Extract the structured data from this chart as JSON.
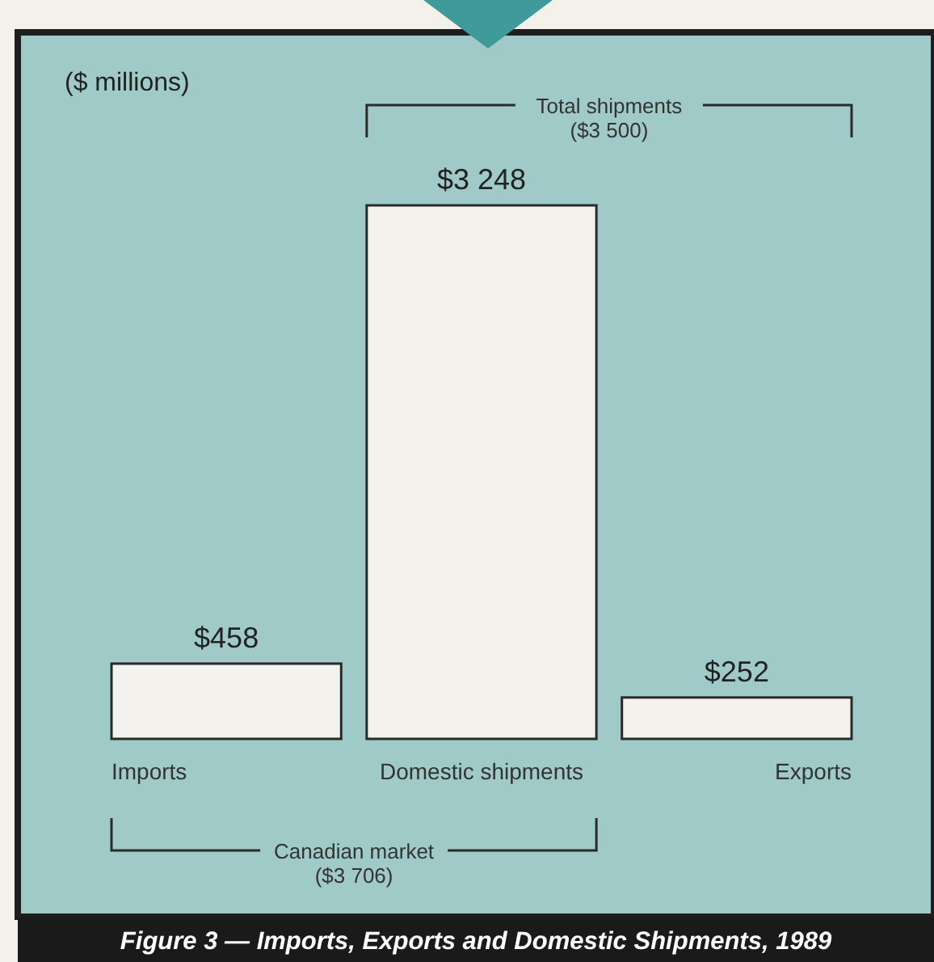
{
  "chart_data": {
    "type": "bar",
    "title": "Figure 3 — Imports, Exports and Domestic Shipments, 1989",
    "ylabel": "($ millions)",
    "categories": [
      "Imports",
      "Domestic shipments",
      "Exports"
    ],
    "values": [
      458,
      3248,
      252
    ],
    "color": "#f3f2ec",
    "value_labels": [
      "$458",
      "$3 248",
      "$252"
    ],
    "tick_labels": "x",
    "annotations": [
      "Total shipments\n($3 500)",
      "Canadian market\n($3 706)"
    ]
  }
}
